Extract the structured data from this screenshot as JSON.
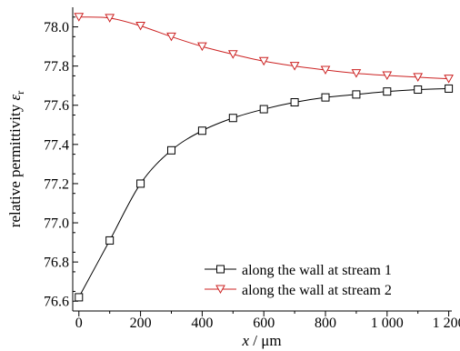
{
  "chart_data": {
    "type": "line",
    "xlabel_var": "x",
    "xlabel_unit": " / μm",
    "ylabel_main": "relative permittivity ",
    "ylabel_sym": "ε",
    "ylabel_sub": "r",
    "xlim": [
      -20,
      1210
    ],
    "ylim": [
      76.55,
      78.1
    ],
    "x_ticks": [
      0,
      200,
      400,
      600,
      800,
      1000,
      1200
    ],
    "x_tick_labels": [
      "0",
      "200",
      "400",
      "600",
      "800",
      "1 000",
      "1 200"
    ],
    "y_ticks": [
      76.6,
      76.8,
      77.0,
      77.2,
      77.4,
      77.6,
      77.8,
      78.0
    ],
    "y_tick_labels": [
      "76.6",
      "76.8",
      "77.0",
      "77.2",
      "77.4",
      "77.6",
      "77.8",
      "78.0"
    ],
    "x": [
      0,
      100,
      200,
      300,
      400,
      500,
      600,
      700,
      800,
      900,
      1000,
      1100,
      1200
    ],
    "series": [
      {
        "name": "along the wall at stream 1",
        "color": "#000000",
        "marker": "square",
        "values": [
          76.62,
          76.91,
          77.2,
          77.37,
          77.47,
          77.535,
          77.58,
          77.615,
          77.64,
          77.655,
          77.67,
          77.68,
          77.685
        ]
      },
      {
        "name": "along the wall at stream 2",
        "color": "#cc2222",
        "marker": "triangle-down",
        "values": [
          78.05,
          78.045,
          78.005,
          77.95,
          77.9,
          77.86,
          77.825,
          77.8,
          77.78,
          77.763,
          77.752,
          77.743,
          77.735
        ]
      }
    ],
    "legend_position": "bottom-right",
    "grid": false
  }
}
